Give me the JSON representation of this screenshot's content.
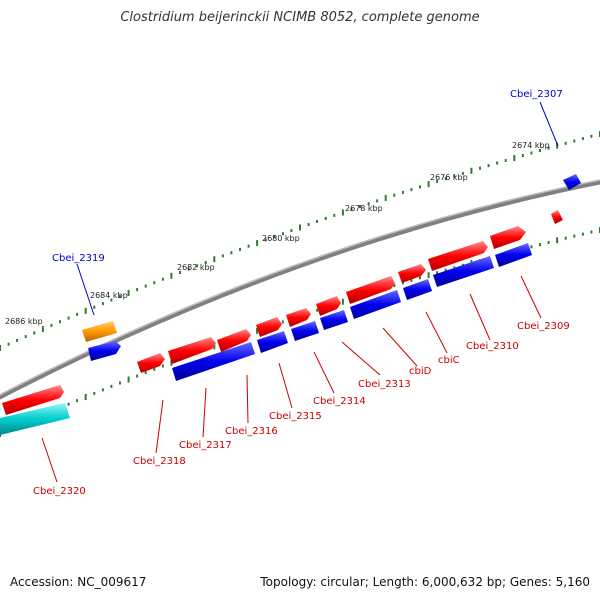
{
  "title": "Clostridium beijerinckii NCIMB 8052, complete genome",
  "footer": {
    "accession": "Accession: NC_009617",
    "topology": "Topology: circular; Length: 6,000,632 bp; Genes: 5,160"
  },
  "kbp_labels": [
    "2674 kbp",
    "2676 kbp",
    "2678 kbp",
    "2680 kbp",
    "2682 kbp",
    "2684 kbp",
    "2686 kbp"
  ],
  "colors": {
    "forward_gene": "#ff0000",
    "reverse_gene": "#0000ff",
    "rna_gene": "#ff9900",
    "other_gene": "#00cccc",
    "backbone": "#808080",
    "tick": "#2e7d32",
    "label_forward": "#cc0000",
    "label_reverse": "#0000cc"
  },
  "gene_labels": [
    {
      "name": "Cbei_2307",
      "strand": "reverse"
    },
    {
      "name": "Cbei_2309",
      "strand": "forward"
    },
    {
      "name": "Cbei_2310",
      "strand": "forward"
    },
    {
      "name": "cbiC",
      "strand": "forward"
    },
    {
      "name": "cbiD",
      "strand": "forward"
    },
    {
      "name": "Cbei_2313",
      "strand": "forward"
    },
    {
      "name": "Cbei_2314",
      "strand": "forward"
    },
    {
      "name": "Cbei_2315",
      "strand": "forward"
    },
    {
      "name": "Cbei_2316",
      "strand": "forward"
    },
    {
      "name": "Cbei_2317",
      "strand": "forward"
    },
    {
      "name": "Cbei_2318",
      "strand": "forward"
    },
    {
      "name": "Cbei_2319",
      "strand": "reverse"
    },
    {
      "name": "Cbei_2320",
      "strand": "forward"
    }
  ]
}
